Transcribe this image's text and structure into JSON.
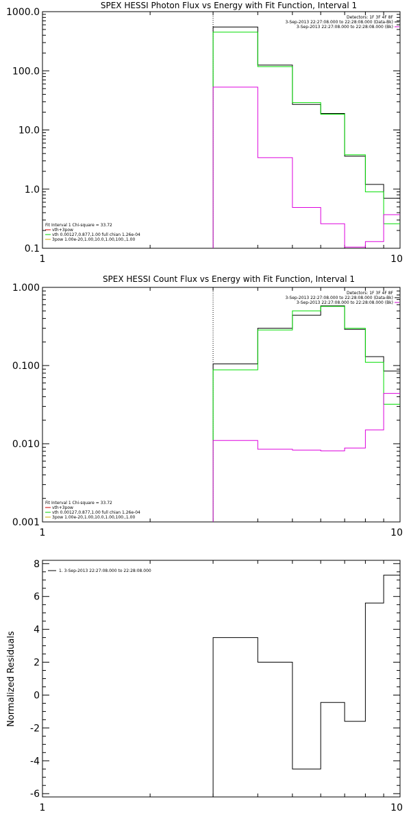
{
  "chart_data": [
    {
      "type": "line",
      "title": "SPEX HESSI Photon Flux vs Energy with Fit Function, Interval 1",
      "xlabel": "",
      "ylabel": "",
      "xscale": "log",
      "yscale": "log",
      "xlim": [
        1,
        10
      ],
      "ylim": [
        0.1,
        1000
      ],
      "xticks": [
        "1",
        "10"
      ],
      "yticks": [
        "0.1",
        "1.0",
        "10.0",
        "100.0",
        "1000.0"
      ],
      "vline_x": 3,
      "legend_right": {
        "header": "Detectors: 1F 3F 4F 8F",
        "entries": [
          {
            "label": "3-Sep-2013 22:27:08.000 to 22:28:08.000 (Data-Bk)",
            "color": "#000000"
          },
          {
            "label": "3-Sep-2013 22:27:08.000 to 22:28:08.000 (Bk)",
            "color": "#cc00cc"
          }
        ]
      },
      "legend_left": {
        "header": "Fit Interval 1    Chi-square = 33.72",
        "entries": [
          {
            "label": "vth+3pow",
            "color": "#cc0000"
          },
          {
            "label": "vth 0.00127,0.877,1.00   full chian 1.26e-04",
            "color": "#00cc00"
          },
          {
            "label": "3pow 1.00e-20,1.00,10.0,1.00,100.,1.00",
            "color": "#ccaa00"
          }
        ]
      },
      "bin_edges": [
        3,
        4,
        5,
        6,
        7,
        8,
        9,
        10
      ],
      "series": [
        {
          "name": "3-Sep-2013 22:27:08.000 to 22:28:08.000 (Data-Bk)",
          "color": "#000000",
          "values": [
            550,
            125,
            27,
            19,
            3.6,
            1.2,
            0.7
          ]
        },
        {
          "name": "vth+3pow",
          "color": "#00dd00",
          "values": [
            450,
            118,
            29,
            18.5,
            3.8,
            0.9,
            0.26
          ]
        },
        {
          "name": "3-Sep-2013 22:27:08.000 to 22:28:08.000 (Bk)",
          "color": "#dd00dd",
          "values": [
            53,
            3.4,
            0.49,
            0.26,
            0.105,
            0.13,
            0.37
          ]
        }
      ]
    },
    {
      "type": "line",
      "title": "SPEX HESSI Count Flux vs Energy with Fit Function, Interval 1",
      "xlabel": "",
      "ylabel": "",
      "xscale": "log",
      "yscale": "log",
      "xlim": [
        1,
        10
      ],
      "ylim": [
        0.001,
        1.0
      ],
      "xticks": [
        "1",
        "10"
      ],
      "yticks": [
        "0.001",
        "0.010",
        "0.100",
        "1.000"
      ],
      "vline_x": 3,
      "legend_right": {
        "header": "Detectors: 1F 3F 4F 8F",
        "entries": [
          {
            "label": "3-Sep-2013 22:27:08.000 to 22:28:08.000 (Data-Bk)",
            "color": "#000000"
          },
          {
            "label": "3-Sep-2013 22:27:08.000 to 22:28:08.000 (Bk)",
            "color": "#cc00cc"
          }
        ]
      },
      "legend_left": {
        "header": "Fit Interval 1    Chi-square = 33.72",
        "entries": [
          {
            "label": "vth+3pow",
            "color": "#cc0000"
          },
          {
            "label": "vth 0.00127,0.877,1.00   full chian 1.26e-04",
            "color": "#00cc00"
          },
          {
            "label": "3pow 1.00e-20,1.00,10.0,1.00,100.,1.00",
            "color": "#ccaa00"
          }
        ]
      },
      "bin_edges": [
        3,
        4,
        5,
        6,
        7,
        8,
        9,
        10
      ],
      "series": [
        {
          "name": "3-Sep-2013 22:27:08.000 to 22:28:08.000 (Data-Bk)",
          "color": "#000000",
          "values": [
            0.105,
            0.3,
            0.44,
            0.58,
            0.29,
            0.13,
            0.085
          ]
        },
        {
          "name": "vth+3pow",
          "color": "#00dd00",
          "values": [
            0.088,
            0.285,
            0.5,
            0.57,
            0.3,
            0.11,
            0.032
          ]
        },
        {
          "name": "3-Sep-2013 22:27:08.000 to 22:28:08.000 (Bk)",
          "color": "#dd00dd",
          "values": [
            0.011,
            0.0085,
            0.0083,
            0.0081,
            0.0088,
            0.015,
            0.044
          ]
        }
      ]
    },
    {
      "type": "line",
      "title": "",
      "xlabel": "",
      "ylabel": "Normalized Residuals",
      "xscale": "log",
      "yscale": "linear",
      "xlim": [
        1,
        10
      ],
      "ylim": [
        -6.2,
        8.2
      ],
      "xticks": [
        "1",
        "10"
      ],
      "yticks": [
        "-6",
        "-4",
        "-2",
        "0",
        "2",
        "4",
        "6",
        "8"
      ],
      "legend": {
        "entries": [
          {
            "label": "1.  3-Sep-2013 22:27:08.000 to 22:28:08.000",
            "color": "#000000"
          }
        ]
      },
      "bin_edges": [
        3,
        4,
        5,
        6,
        7,
        8,
        9,
        10
      ],
      "series": [
        {
          "name": "1.  3-Sep-2013 22:27:08.000 to 22:28:08.000",
          "color": "#000000",
          "values": [
            3.5,
            2.0,
            -4.5,
            -0.45,
            -1.6,
            5.6,
            7.3
          ]
        }
      ]
    }
  ]
}
